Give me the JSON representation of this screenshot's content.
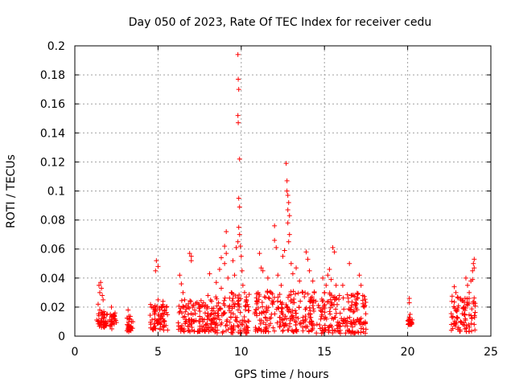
{
  "chart_data": {
    "type": "scatter",
    "title": "Day 050 of 2023, Rate Of TEC Index for receiver cedu",
    "xlabel": "GPS time / hours",
    "ylabel": "ROTI / TECUs",
    "xlim": [
      0,
      25
    ],
    "ylim": [
      0,
      0.2
    ],
    "xticks": [
      "0",
      "5",
      "10",
      "15",
      "20",
      "25"
    ],
    "yticks": [
      "0",
      "0.02",
      "0.04",
      "0.06",
      "0.08",
      "0.1",
      "0.12",
      "0.14",
      "0.16",
      "0.18",
      "0.2"
    ],
    "grid": true,
    "marker": "+",
    "color": "#ff0000",
    "points": [
      [
        1.45,
        0.035
      ],
      [
        1.5,
        0.03
      ],
      [
        1.55,
        0.037
      ],
      [
        1.6,
        0.033
      ],
      [
        1.65,
        0.028
      ],
      [
        1.7,
        0.025
      ],
      [
        1.5,
        0.018
      ],
      [
        1.6,
        0.012
      ],
      [
        1.7,
        0.01
      ],
      [
        1.8,
        0.015
      ],
      [
        1.9,
        0.009
      ],
      [
        1.4,
        0.022
      ],
      [
        2.2,
        0.02
      ],
      [
        2.3,
        0.014
      ],
      [
        2.25,
        0.01
      ],
      [
        2.2,
        0.008
      ],
      [
        3.2,
        0.018
      ],
      [
        3.3,
        0.012
      ],
      [
        3.25,
        0.007
      ],
      [
        3.3,
        0.004
      ],
      [
        4.6,
        0.02
      ],
      [
        4.8,
        0.015
      ],
      [
        4.9,
        0.01
      ],
      [
        5.0,
        0.025
      ],
      [
        4.85,
        0.045
      ],
      [
        4.9,
        0.052
      ],
      [
        5.0,
        0.048
      ],
      [
        5.1,
        0.018
      ],
      [
        5.3,
        0.024
      ],
      [
        5.5,
        0.02
      ],
      [
        6.3,
        0.042
      ],
      [
        6.4,
        0.036
      ],
      [
        6.5,
        0.03
      ],
      [
        6.6,
        0.025
      ],
      [
        6.8,
        0.02
      ],
      [
        6.9,
        0.057
      ],
      [
        7.0,
        0.052
      ],
      [
        7.0,
        0.055
      ],
      [
        7.1,
        0.015
      ],
      [
        7.5,
        0.02
      ],
      [
        8.0,
        0.028
      ],
      [
        8.2,
        0.015
      ],
      [
        8.5,
        0.012
      ],
      [
        8.1,
        0.043
      ],
      [
        8.5,
        0.037
      ],
      [
        8.8,
        0.033
      ],
      [
        8.7,
        0.046
      ],
      [
        9.0,
        0.05
      ],
      [
        9.1,
        0.057
      ],
      [
        8.8,
        0.054
      ],
      [
        9.0,
        0.062
      ],
      [
        9.1,
        0.072
      ],
      [
        9.2,
        0.04
      ],
      [
        9.4,
        0.03
      ],
      [
        9.5,
        0.052
      ],
      [
        9.6,
        0.042
      ],
      [
        9.7,
        0.061
      ],
      [
        9.8,
        0.065
      ],
      [
        9.85,
        0.075
      ],
      [
        9.85,
        0.095
      ],
      [
        9.9,
        0.089
      ],
      [
        9.9,
        0.122
      ],
      [
        9.82,
        0.147
      ],
      [
        9.8,
        0.152
      ],
      [
        9.85,
        0.17
      ],
      [
        9.82,
        0.177
      ],
      [
        9.8,
        0.194
      ],
      [
        9.9,
        0.07
      ],
      [
        9.95,
        0.062
      ],
      [
        10.0,
        0.055
      ],
      [
        10.05,
        0.045
      ],
      [
        10.1,
        0.035
      ],
      [
        10.2,
        0.03
      ],
      [
        10.3,
        0.025
      ],
      [
        11.1,
        0.057
      ],
      [
        11.2,
        0.047
      ],
      [
        11.3,
        0.045
      ],
      [
        11.6,
        0.04
      ],
      [
        11.8,
        0.03
      ],
      [
        12.0,
        0.076
      ],
      [
        12.0,
        0.066
      ],
      [
        12.1,
        0.061
      ],
      [
        12.2,
        0.042
      ],
      [
        12.4,
        0.035
      ],
      [
        12.5,
        0.055
      ],
      [
        12.6,
        0.059
      ],
      [
        12.7,
        0.119
      ],
      [
        12.75,
        0.107
      ],
      [
        12.75,
        0.1
      ],
      [
        12.8,
        0.097
      ],
      [
        12.85,
        0.092
      ],
      [
        12.8,
        0.087
      ],
      [
        12.9,
        0.083
      ],
      [
        12.8,
        0.078
      ],
      [
        12.9,
        0.07
      ],
      [
        12.85,
        0.065
      ],
      [
        13.0,
        0.05
      ],
      [
        13.1,
        0.043
      ],
      [
        13.3,
        0.047
      ],
      [
        13.5,
        0.038
      ],
      [
        13.7,
        0.03
      ],
      [
        13.9,
        0.058
      ],
      [
        14.0,
        0.053
      ],
      [
        14.1,
        0.045
      ],
      [
        14.3,
        0.038
      ],
      [
        14.9,
        0.04
      ],
      [
        15.0,
        0.03
      ],
      [
        15.1,
        0.035
      ],
      [
        15.2,
        0.042
      ],
      [
        15.3,
        0.046
      ],
      [
        15.4,
        0.039
      ],
      [
        15.5,
        0.061
      ],
      [
        15.6,
        0.058
      ],
      [
        15.7,
        0.035
      ],
      [
        15.9,
        0.028
      ],
      [
        16.1,
        0.035
      ],
      [
        16.5,
        0.05
      ],
      [
        16.6,
        0.028
      ],
      [
        16.9,
        0.025
      ],
      [
        17.1,
        0.042
      ],
      [
        17.2,
        0.035
      ],
      [
        17.3,
        0.028
      ],
      [
        17.4,
        0.02
      ],
      [
        20.1,
        0.026
      ],
      [
        20.1,
        0.023
      ],
      [
        20.15,
        0.015
      ],
      [
        20.1,
        0.013
      ],
      [
        20.2,
        0.01
      ],
      [
        20.1,
        0.008
      ],
      [
        22.8,
        0.034
      ],
      [
        22.9,
        0.03
      ],
      [
        23.0,
        0.027
      ],
      [
        23.2,
        0.025
      ],
      [
        23.4,
        0.02
      ],
      [
        23.5,
        0.04
      ],
      [
        23.6,
        0.035
      ],
      [
        23.7,
        0.03
      ],
      [
        23.8,
        0.038
      ],
      [
        23.9,
        0.045
      ],
      [
        23.95,
        0.05
      ],
      [
        24.0,
        0.053
      ],
      [
        24.0,
        0.047
      ],
      [
        23.9,
        0.039
      ]
    ],
    "dense_clusters": [
      {
        "x": [
          1.3,
          2.0
        ],
        "y": [
          0.006,
          0.017
        ]
      },
      {
        "x": [
          2.1,
          2.5
        ],
        "y": [
          0.005,
          0.016
        ]
      },
      {
        "x": [
          3.1,
          3.5
        ],
        "y": [
          0.003,
          0.014
        ]
      },
      {
        "x": [
          4.5,
          5.6
        ],
        "y": [
          0.004,
          0.022
        ]
      },
      {
        "x": [
          6.2,
          8.4
        ],
        "y": [
          0.003,
          0.025
        ]
      },
      {
        "x": [
          8.4,
          10.5
        ],
        "y": [
          0.002,
          0.03
        ]
      },
      {
        "x": [
          10.8,
          14.5
        ],
        "y": [
          0.003,
          0.032
        ]
      },
      {
        "x": [
          14.5,
          17.5
        ],
        "y": [
          0.002,
          0.03
        ]
      },
      {
        "x": [
          20.0,
          20.3
        ],
        "y": [
          0.008,
          0.012
        ]
      },
      {
        "x": [
          22.6,
          24.1
        ],
        "y": [
          0.003,
          0.028
        ]
      }
    ]
  }
}
